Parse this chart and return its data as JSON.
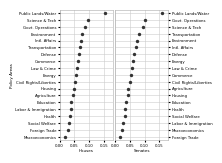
{
  "house_categories": [
    "Public Lands/Water",
    "Science & Tech",
    "Govt. Operations",
    "Environment",
    "Intl. Affairs",
    "Transportation",
    "Defense",
    "Commerce",
    "Law & Crime",
    "Energy",
    "Civil Rights/Liberties",
    "Housing",
    "Agriculture",
    "Education",
    "Labor & Immigration",
    "Health",
    "Social Welfare",
    "Foreign Trade",
    "Macroeconomics"
  ],
  "house_values": [
    0.155,
    0.095,
    0.085,
    0.075,
    0.072,
    0.068,
    0.065,
    0.062,
    0.058,
    0.055,
    0.052,
    0.048,
    0.045,
    0.04,
    0.038,
    0.035,
    0.032,
    0.028,
    0.02
  ],
  "senate_categories": [
    "Public Lands/Water",
    "Govt. Operations",
    "Science & Tech",
    "Transportation",
    "Environment",
    "Intl. Affairs",
    "Defense",
    "Energy",
    "Law & Crime",
    "Commerce",
    "Civil Rights/Liberties",
    "Agriculture",
    "Housing",
    "Education",
    "Health",
    "Social Welfare",
    "Labor & Immigration",
    "Macroeconomics",
    "Foreign Trade"
  ],
  "senate_values": [
    0.16,
    0.1,
    0.095,
    0.08,
    0.075,
    0.07,
    0.065,
    0.06,
    0.058,
    0.055,
    0.05,
    0.045,
    0.042,
    0.038,
    0.035,
    0.032,
    0.028,
    0.022,
    0.018
  ],
  "xlabel_house": "Houses",
  "xlabel_senate": "Senates",
  "ylabel": "Policy Areas",
  "xlim": [
    0.0,
    0.18
  ],
  "xticks": [
    0.0,
    0.05,
    0.1,
    0.15
  ],
  "dot_color": "#333333",
  "dot_size": 6,
  "bg_color": "#ffffff",
  "grid_color": "#cccccc"
}
